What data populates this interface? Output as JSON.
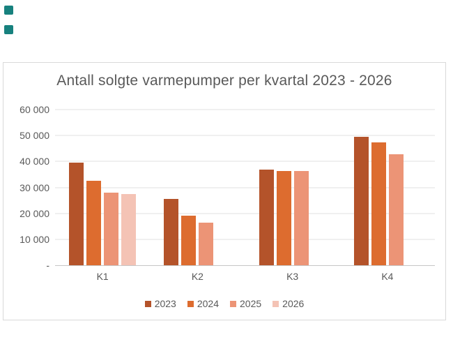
{
  "canvas": {
    "background": "#FFFFFF"
  },
  "teal_squares": {
    "color": "#17817E",
    "count": 2
  },
  "chart": {
    "text_color": "#595959",
    "gridline_color": "#E2E2E2",
    "axis_line_color": "#C6C6C6",
    "frame_border_color": "#D9D9D9"
  },
  "chart_data": {
    "type": "bar",
    "title": "Antall solgte varmepumper per kvartal 2023 - 2026",
    "categories": [
      "K1",
      "K2",
      "K3",
      "K4"
    ],
    "series": [
      {
        "name": "2023",
        "color": "#B4532A",
        "values": [
          39500,
          25500,
          36800,
          49500
        ]
      },
      {
        "name": "2024",
        "color": "#DD6C2F",
        "values": [
          32500,
          19000,
          36200,
          47400
        ]
      },
      {
        "name": "2025",
        "color": "#EC9476",
        "values": [
          28000,
          16500,
          36300,
          42700
        ]
      },
      {
        "name": "2026",
        "color": "#F4C3B5",
        "values": [
          27500,
          null,
          null,
          null
        ]
      }
    ],
    "ylim": [
      0,
      60000
    ],
    "y_step": 10000,
    "y_tick_labels": [
      "-",
      "10 000",
      "20 000",
      "30 000",
      "40 000",
      "50 000",
      "60 000"
    ],
    "xlabel": "",
    "ylabel": "",
    "grid": true,
    "legend_position": "bottom"
  }
}
